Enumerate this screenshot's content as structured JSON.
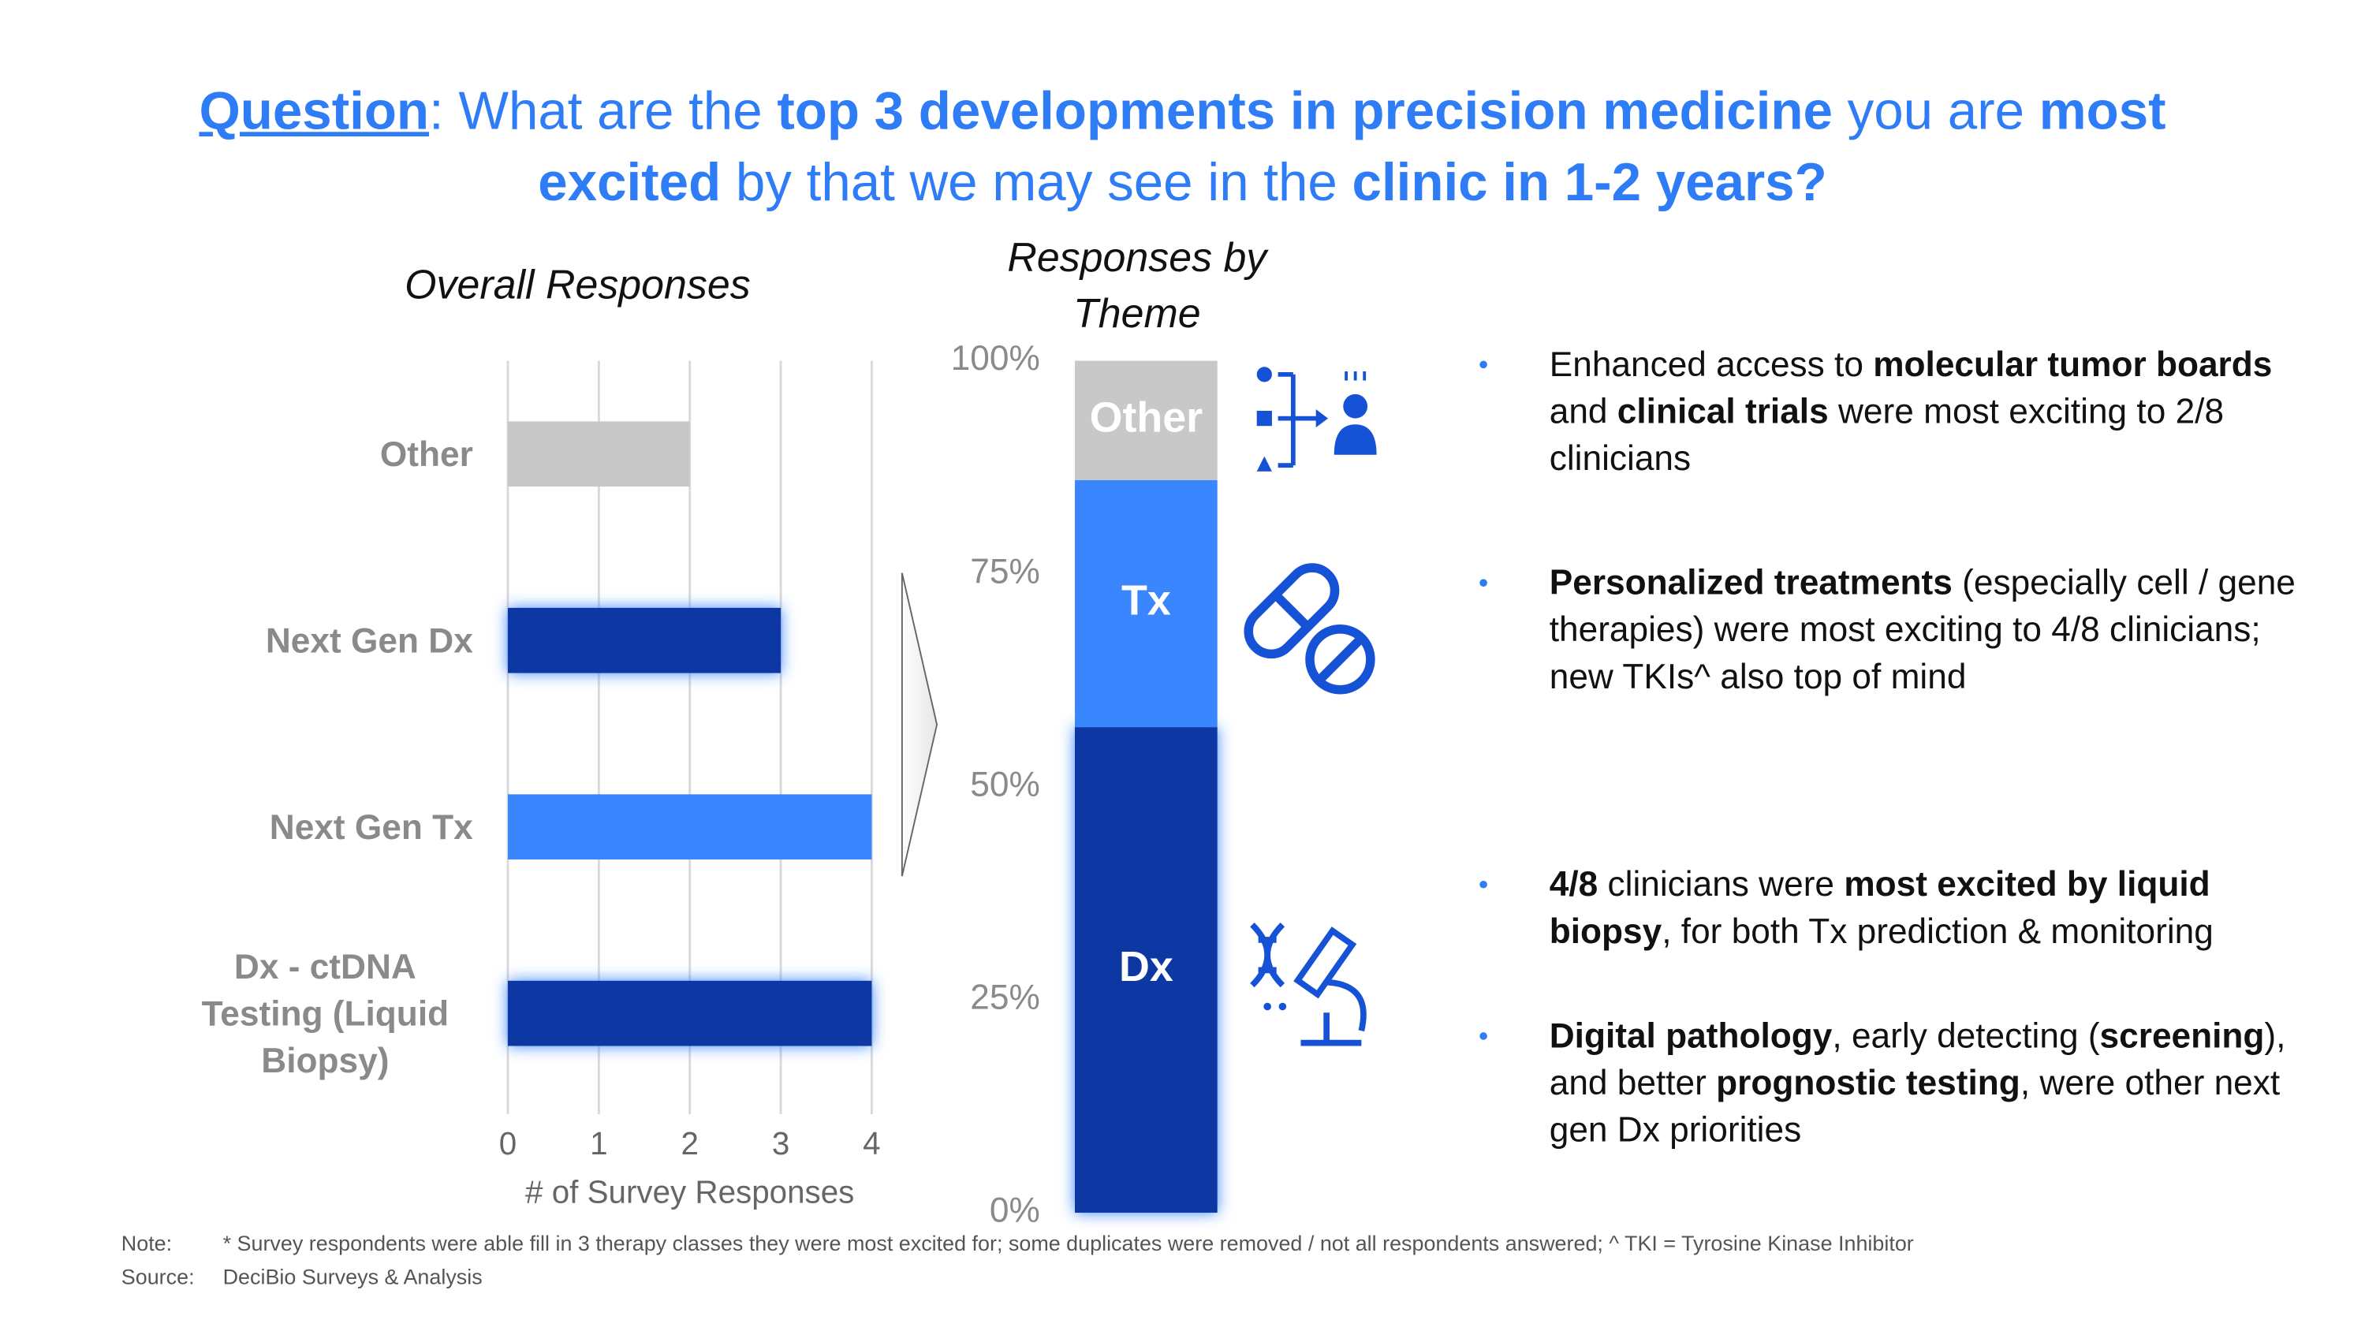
{
  "title_runs": [
    {
      "text": "Question",
      "bold": true,
      "underline": true
    },
    {
      "text": ": What are the "
    },
    {
      "text": "top 3 developments in precision medicine",
      "bold": true
    },
    {
      "text": " you are "
    },
    {
      "text": "most excited",
      "bold": true
    },
    {
      "text": " by that we may see in the "
    },
    {
      "text": "clinic in 1-2 years?",
      "bold": true
    }
  ],
  "chart_data": [
    {
      "type": "bar",
      "orientation": "horizontal",
      "title": "Overall Responses",
      "categories": [
        "Other",
        "Next Gen Dx",
        "Next Gen Tx",
        "Dx - ctDNA Testing (Liquid Biopsy)"
      ],
      "values": [
        2,
        3,
        4,
        4
      ],
      "colors": [
        "#c8c8c8",
        "#0b38a3",
        "#3a86ff",
        "#0b38a3"
      ],
      "highlight": [
        false,
        true,
        false,
        true
      ],
      "xlim": [
        0,
        4
      ],
      "xticks": [
        0,
        1,
        2,
        3,
        4
      ],
      "xlabel": "# of Survey Responses",
      "grid": true
    },
    {
      "type": "stacked_bar",
      "title": "Responses by Theme",
      "series": [
        {
          "name": "Dx",
          "color": "#0b38a3",
          "values": [
            57
          ],
          "highlight": true
        },
        {
          "name": "Tx",
          "color": "#3a86ff",
          "values": [
            29
          ]
        },
        {
          "name": "Other",
          "color": "#c8c8c8",
          "values": [
            14
          ]
        }
      ],
      "ylim": [
        0,
        100
      ],
      "yticks": [
        {
          "value": 0,
          "label": "0%"
        },
        {
          "value": 25,
          "label": "25%"
        },
        {
          "value": 50,
          "label": "50%"
        },
        {
          "value": 75,
          "label": "75%"
        },
        {
          "value": 100,
          "label": "100%"
        }
      ]
    }
  ],
  "bullets": [
    {
      "runs": [
        {
          "text": "Enhanced access to "
        },
        {
          "text": "molecular tumor boards",
          "bold": true
        },
        {
          "text": " and "
        },
        {
          "text": "clinical trials",
          "bold": true
        },
        {
          "text": " were most exciting to 2/8 clinicians"
        }
      ]
    },
    {
      "runs": [
        {
          "text": "Personalized treatments",
          "bold": true
        },
        {
          "text": " (especially cell / gene therapies) were most exciting to 4/8 clinicians; new TKIs^ also top of mind"
        }
      ]
    },
    {
      "runs": [
        {
          "text": "4/8",
          "bold": true
        },
        {
          "text": " clinicians were "
        },
        {
          "text": "most excited by liquid biopsy",
          "bold": true
        },
        {
          "text": ", for both Tx prediction & monitoring"
        }
      ]
    },
    {
      "runs": [
        {
          "text": "Digital pathology",
          "bold": true
        },
        {
          "text": ", early detecting ("
        },
        {
          "text": "screening",
          "bold": true
        },
        {
          "text": "), and better "
        },
        {
          "text": "prognostic testing",
          "bold": true
        },
        {
          "text": ", were other next gen Dx priorities"
        }
      ]
    }
  ],
  "footer": {
    "note_label": "Note:",
    "note": "* Survey respondents were able fill in 3 therapy classes they were most excited for; some duplicates were removed / not all respondents answered; ^ TKI = Tyrosine Kinase Inhibitor",
    "source_label": "Source:",
    "source": "DeciBio Surveys & Analysis"
  }
}
